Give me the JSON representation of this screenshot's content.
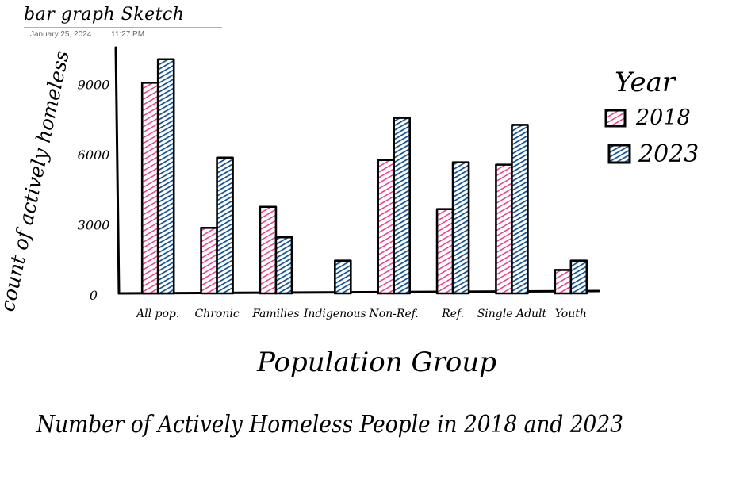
{
  "note": {
    "title": "bar graph Sketch",
    "date": "January 25, 2024",
    "time": "11:27 PM"
  },
  "colors": {
    "2018": "#e83e8c",
    "2023": "#0f4f8c",
    "outline": "#000000"
  },
  "chart_data": {
    "type": "bar",
    "title": "Number of Actively Homeless People in 2018 and 2023",
    "xlabel": "Population Group",
    "ylabel": "count of actively homeless",
    "categories": [
      "All pop.",
      "Chronic",
      "Families",
      "Indigenous",
      "Non-Ref.",
      "Ref.",
      "Single Adult",
      "Youth"
    ],
    "series": [
      {
        "name": "2018",
        "values": [
          9000,
          2800,
          3700,
          0,
          5700,
          3600,
          5500,
          1000
        ]
      },
      {
        "name": "2023",
        "values": [
          10000,
          5800,
          2400,
          1400,
          7500,
          5600,
          7200,
          1400
        ]
      }
    ],
    "yticks": [
      0,
      3000,
      6000,
      9000
    ],
    "ytick_labels": [
      "0",
      "3000",
      "6000",
      "9000"
    ],
    "ylim": [
      0,
      10500
    ],
    "grid": false,
    "legend": {
      "title": "Year",
      "position": "right",
      "entries": [
        "2018",
        "2023"
      ]
    }
  }
}
